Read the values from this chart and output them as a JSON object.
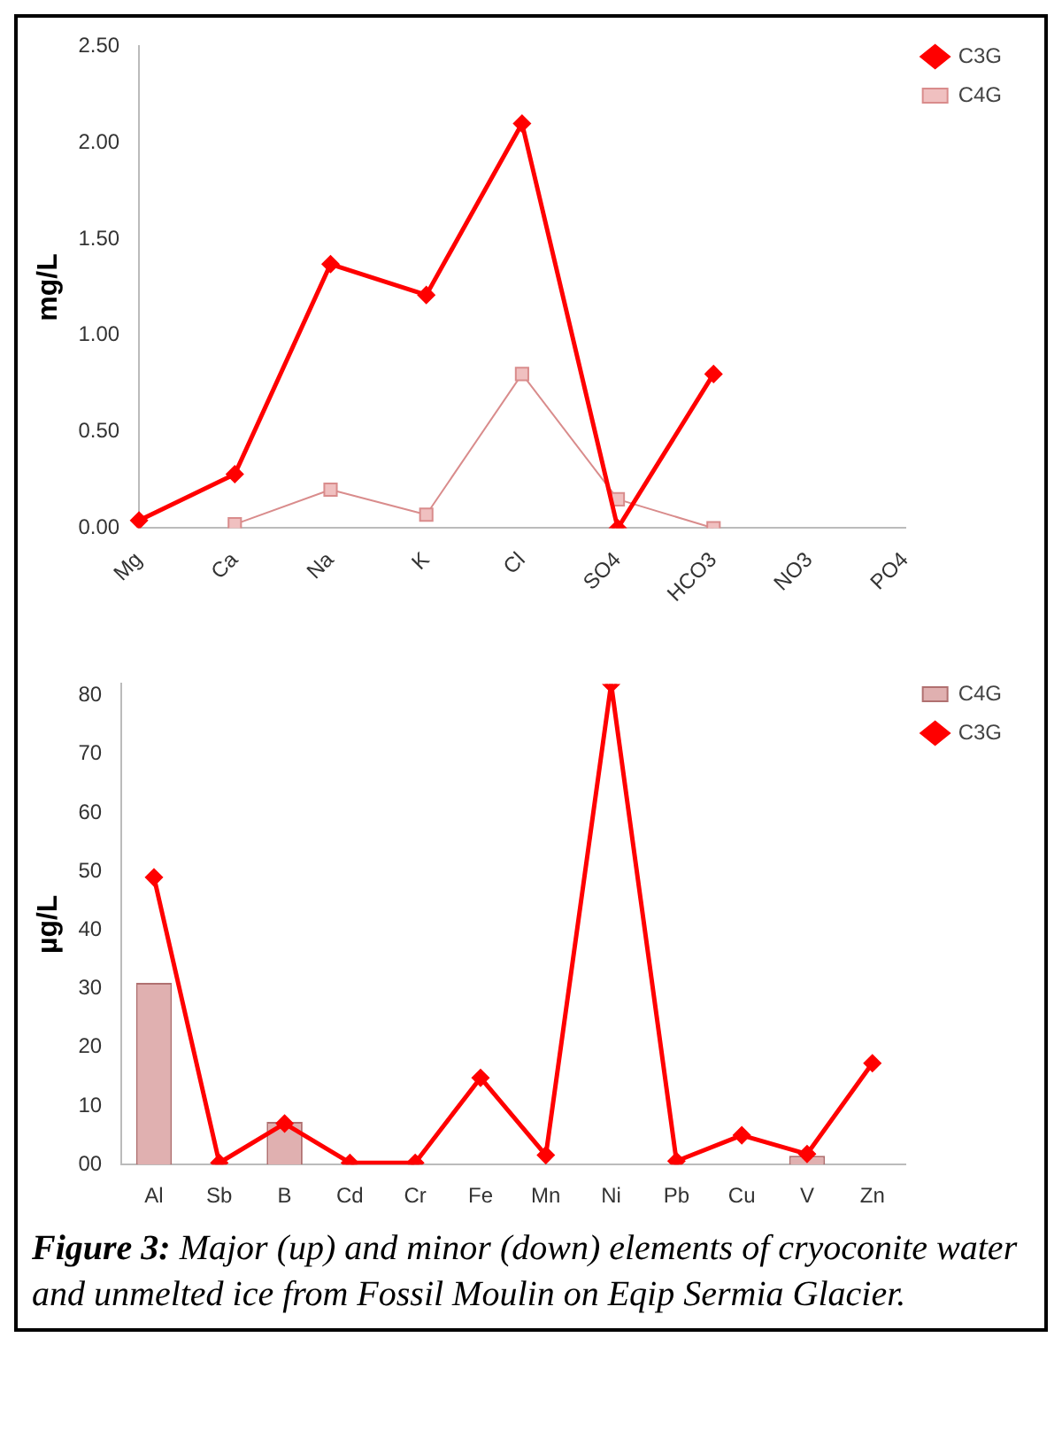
{
  "chart_data": [
    {
      "type": "line",
      "ylabel": "mg/L",
      "categories": [
        "Mg",
        "Ca",
        "Na",
        "K",
        "Cl",
        "SO4",
        "HCO3",
        "NO3",
        "PO4"
      ],
      "series": [
        {
          "name": "C3G",
          "color": "#ff0000",
          "marker": "diamond",
          "values": [
            0.04,
            0.28,
            1.37,
            1.21,
            2.1,
            0.0,
            0.8,
            null,
            null
          ]
        },
        {
          "name": "C4G",
          "color": "#d98c8c",
          "marker": "square",
          "values": [
            null,
            0.02,
            0.2,
            0.07,
            0.8,
            0.15,
            0.0,
            null,
            null
          ]
        }
      ],
      "ylim": [
        0,
        2.5
      ],
      "yticks": [
        {
          "value": 0,
          "label": "0.00"
        },
        {
          "value": 0.5,
          "label": "0.50"
        },
        {
          "value": 1,
          "label": "1.00"
        },
        {
          "value": 1.5,
          "label": "1.50"
        },
        {
          "value": 2,
          "label": "2.00"
        },
        {
          "value": 2.5,
          "label": "2.50"
        }
      ],
      "grid": false,
      "legend": "top right"
    },
    {
      "type": "bar",
      "ylabel": "µg/L",
      "categories": [
        "Al",
        "Sb",
        "B",
        "Cd",
        "Cr",
        "Fe",
        "Mn",
        "Ni",
        "Pb",
        "Cu",
        "V",
        "Zn"
      ],
      "series": [
        {
          "name": "C4G",
          "type": "bar",
          "color": "#e0b0b0",
          "values": [
            31,
            0,
            7.3,
            0,
            0,
            0,
            0,
            0,
            0,
            0,
            1.5,
            0
          ]
        },
        {
          "name": "C3G",
          "type": "line",
          "color": "#ff0000",
          "marker": "diamond",
          "values": [
            49,
            0.3,
            7,
            0.3,
            0.3,
            14.8,
            1.6,
            82,
            0.6,
            5,
            1.8,
            17.3
          ]
        }
      ],
      "ylim": [
        0,
        82
      ],
      "yticks": [
        {
          "value": 0,
          "label": "00"
        },
        10,
        20,
        30,
        40,
        50,
        60,
        70,
        80
      ],
      "grid": false,
      "legend": "top right",
      "annotations": [
        "Figure 3: Major (up) and minor (down) elements of cryoconite water and unmelted ice from Fossil Moulin on Eqip Sermia Glacier."
      ]
    }
  ]
}
